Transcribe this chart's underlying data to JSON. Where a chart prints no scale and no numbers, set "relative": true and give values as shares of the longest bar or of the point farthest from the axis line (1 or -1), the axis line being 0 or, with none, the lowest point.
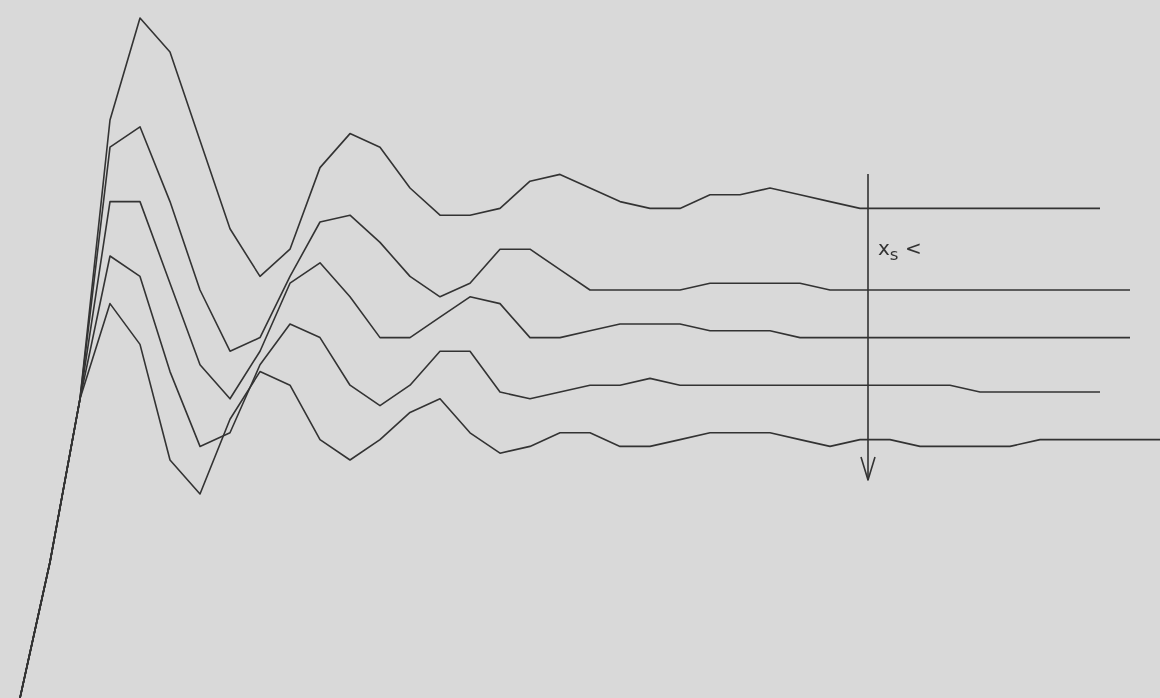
{
  "chart_data": {
    "type": "line",
    "relative": true,
    "line_style": "solid",
    "marker": "none",
    "annotations": [
      "x$_{s}$ <"
    ],
    "categories": [
      null,
      null,
      null,
      null,
      null,
      null,
      null,
      null,
      null,
      null,
      null,
      null,
      null,
      null,
      null,
      null,
      null,
      null,
      null,
      null,
      null,
      null,
      null,
      null,
      null,
      null,
      null,
      null,
      null,
      null,
      null,
      null,
      null,
      null,
      null,
      null,
      null,
      null,
      null
    ],
    "series": [
      {
        "color": "#333333",
        "values": [
          0,
          0.2,
          0.44,
          0.85,
          1,
          0.95,
          0.82,
          0.69,
          0.62,
          0.66,
          0.78,
          0.83,
          0.81,
          0.75,
          0.71,
          0.71,
          0.72,
          0.76,
          0.77,
          0.75,
          0.73,
          0.72,
          0.72,
          0.74,
          0.74,
          0.75,
          0.74,
          0.73,
          0.72,
          0.72,
          0.72,
          0.72,
          0.72,
          0.72,
          0.72,
          0.72,
          0.72,
          null,
          null
        ]
      },
      {
        "color": "#333333",
        "values": [
          0,
          0.2,
          0.44,
          0.81,
          0.84,
          0.73,
          0.6,
          0.51,
          0.53,
          0.62,
          0.7,
          0.71,
          0.67,
          0.62,
          0.59,
          0.61,
          0.66,
          0.66,
          0.63,
          0.6,
          0.6,
          0.6,
          0.6,
          0.61,
          0.61,
          0.61,
          0.61,
          0.6,
          0.6,
          0.6,
          0.6,
          0.6,
          0.6,
          0.6,
          0.6,
          0.6,
          0.6,
          0.6,
          null
        ]
      },
      {
        "color": "#333333",
        "values": [
          0,
          0.2,
          0.44,
          0.73,
          0.73,
          0.61,
          0.49,
          0.44,
          0.51,
          0.61,
          0.64,
          0.59,
          0.53,
          0.53,
          0.56,
          0.59,
          0.58,
          0.53,
          0.53,
          0.54,
          0.55,
          0.55,
          0.55,
          0.54,
          0.54,
          0.54,
          0.53,
          0.53,
          0.53,
          0.53,
          0.53,
          0.53,
          0.53,
          0.53,
          0.53,
          0.53,
          0.53,
          0.53,
          null
        ]
      },
      {
        "color": "#333333",
        "values": [
          0,
          0.2,
          0.44,
          0.65,
          0.62,
          0.48,
          0.37,
          0.39,
          0.49,
          0.55,
          0.53,
          0.46,
          0.43,
          0.46,
          0.51,
          0.51,
          0.45,
          0.44,
          0.45,
          0.46,
          0.46,
          0.47,
          0.46,
          0.46,
          0.46,
          0.46,
          0.46,
          0.46,
          0.46,
          0.46,
          0.46,
          0.46,
          0.45,
          0.45,
          0.45,
          0.45,
          0.45,
          null,
          null
        ]
      },
      {
        "color": "#333333",
        "values": [
          0,
          0.2,
          0.44,
          0.58,
          0.52,
          0.35,
          0.3,
          0.41,
          0.48,
          0.46,
          0.38,
          0.35,
          0.38,
          0.42,
          0.44,
          0.39,
          0.36,
          0.37,
          0.39,
          0.39,
          0.37,
          0.37,
          0.38,
          0.39,
          0.39,
          0.39,
          0.38,
          0.37,
          0.38,
          0.38,
          0.37,
          0.37,
          0.37,
          0.37,
          0.38,
          0.38,
          0.38,
          0.38,
          0.38
        ]
      }
    ]
  }
}
